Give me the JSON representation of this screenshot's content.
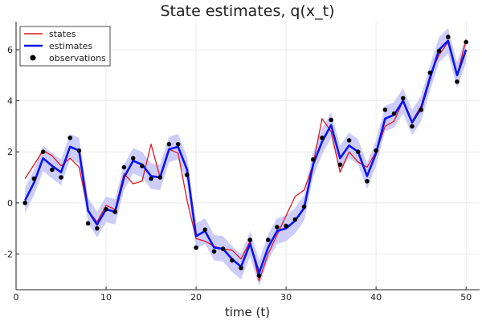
{
  "chart_data": {
    "type": "line",
    "title": "State estimates, q(x_t)",
    "xlabel": "time (t)",
    "ylabel": "",
    "xlim": [
      0,
      51.5
    ],
    "ylim": [
      -3.4,
      7.1
    ],
    "x_ticks": [
      0,
      10,
      20,
      30,
      40,
      50
    ],
    "x_tick_labels": [
      "0",
      "10",
      "20",
      "30",
      "40",
      "50"
    ],
    "y_ticks": [
      -2,
      0,
      2,
      4,
      6
    ],
    "y_tick_labels": [
      "-2",
      "0",
      "2",
      "4",
      "6"
    ],
    "grid": true,
    "legend_position": "top-left",
    "colors": {
      "states": "#e0191f",
      "estimates": "#0a14ee",
      "band": "#c8c8f8",
      "observations": "#000000"
    },
    "series": [
      {
        "name": "states",
        "kind": "line",
        "x": [
          1,
          2,
          3,
          4,
          5,
          6,
          7,
          8,
          9,
          10,
          11,
          12,
          13,
          14,
          15,
          16,
          17,
          18,
          19,
          20,
          21,
          22,
          23,
          24,
          25,
          26,
          27,
          28,
          29,
          30,
          31,
          32,
          33,
          34,
          35,
          36,
          37,
          38,
          39,
          40,
          41,
          42,
          43,
          44,
          45,
          46,
          47,
          48,
          49,
          50
        ],
        "y": [
          0.95,
          1.5,
          2.05,
          1.85,
          1.45,
          1.75,
          1.4,
          -0.3,
          -0.75,
          -0.1,
          -0.25,
          1.15,
          0.75,
          0.85,
          2.3,
          1.0,
          2.1,
          1.95,
          0.1,
          -1.4,
          -1.5,
          -1.7,
          -1.8,
          -1.85,
          -2.2,
          -1.5,
          -3.05,
          -2.0,
          -1.25,
          -0.5,
          0.25,
          0.5,
          1.5,
          3.3,
          2.8,
          1.2,
          2.0,
          1.6,
          1.4,
          2.0,
          3.0,
          3.2,
          4.0,
          3.2,
          3.8,
          5.0,
          5.8,
          6.3,
          5.0,
          6.4
        ]
      },
      {
        "name": "estimates",
        "kind": "line",
        "x": [
          1,
          2,
          3,
          4,
          5,
          6,
          7,
          8,
          9,
          10,
          11,
          12,
          13,
          14,
          15,
          16,
          17,
          18,
          19,
          20,
          21,
          22,
          23,
          24,
          25,
          26,
          27,
          28,
          29,
          30,
          31,
          32,
          33,
          34,
          35,
          36,
          37,
          38,
          39,
          40,
          41,
          42,
          43,
          44,
          45,
          46,
          47,
          48,
          49,
          50
        ],
        "y": [
          0.1,
          0.8,
          1.75,
          1.45,
          1.2,
          2.2,
          2.05,
          -0.3,
          -0.85,
          -0.25,
          -0.35,
          1.0,
          1.65,
          1.5,
          1.05,
          1.0,
          2.1,
          2.2,
          1.3,
          -1.3,
          -1.1,
          -1.75,
          -1.8,
          -2.2,
          -2.5,
          -1.6,
          -2.75,
          -1.75,
          -1.1,
          -1.0,
          -0.7,
          -0.2,
          1.5,
          2.4,
          3.05,
          1.75,
          2.25,
          2.0,
          1.05,
          1.95,
          3.3,
          3.45,
          4.0,
          3.15,
          3.7,
          4.9,
          6.0,
          6.35,
          5.0,
          6.0
        ]
      },
      {
        "name": "",
        "kind": "band",
        "x": [
          1,
          2,
          3,
          4,
          5,
          6,
          7,
          8,
          9,
          10,
          11,
          12,
          13,
          14,
          15,
          16,
          17,
          18,
          19,
          20,
          21,
          22,
          23,
          24,
          25,
          26,
          27,
          28,
          29,
          30,
          31,
          32,
          33,
          34,
          35,
          36,
          37,
          38,
          39,
          40,
          41,
          42,
          43,
          44,
          45,
          46,
          47,
          48,
          49,
          50
        ],
        "center": [
          0.1,
          0.8,
          1.75,
          1.45,
          1.2,
          2.2,
          2.05,
          -0.3,
          -0.85,
          -0.25,
          -0.35,
          1.0,
          1.65,
          1.5,
          1.05,
          1.0,
          2.1,
          2.2,
          1.3,
          -1.3,
          -1.1,
          -1.75,
          -1.8,
          -2.2,
          -2.5,
          -1.6,
          -2.75,
          -1.75,
          -1.1,
          -1.0,
          -0.7,
          -0.2,
          1.5,
          2.4,
          3.05,
          1.75,
          2.25,
          2.0,
          1.05,
          1.95,
          3.3,
          3.45,
          4.0,
          3.15,
          3.7,
          4.9,
          6.0,
          6.35,
          5.0,
          6.0
        ],
        "half_width": 0.5
      },
      {
        "name": "observations",
        "kind": "scatter",
        "x": [
          1,
          2,
          3,
          4,
          5,
          6,
          7,
          8,
          9,
          10,
          11,
          12,
          13,
          14,
          15,
          16,
          17,
          18,
          19,
          20,
          21,
          22,
          23,
          24,
          25,
          26,
          27,
          28,
          29,
          30,
          31,
          32,
          33,
          34,
          35,
          36,
          37,
          38,
          39,
          40,
          41,
          42,
          43,
          44,
          45,
          46,
          47,
          48,
          49,
          50
        ],
        "y": [
          0.0,
          0.95,
          2.0,
          1.3,
          1.0,
          2.55,
          2.05,
          -0.8,
          -1.0,
          -0.25,
          -0.35,
          1.4,
          1.75,
          1.45,
          0.95,
          1.0,
          2.3,
          2.3,
          1.1,
          -1.75,
          -1.05,
          -1.9,
          -1.8,
          -2.25,
          -2.55,
          -1.45,
          -2.85,
          -1.45,
          -0.95,
          -0.9,
          -0.65,
          -0.15,
          1.7,
          2.55,
          3.25,
          1.5,
          2.45,
          2.0,
          0.85,
          2.05,
          3.65,
          3.5,
          4.1,
          3.0,
          3.65,
          5.1,
          5.95,
          6.5,
          4.75,
          6.3
        ]
      }
    ]
  }
}
